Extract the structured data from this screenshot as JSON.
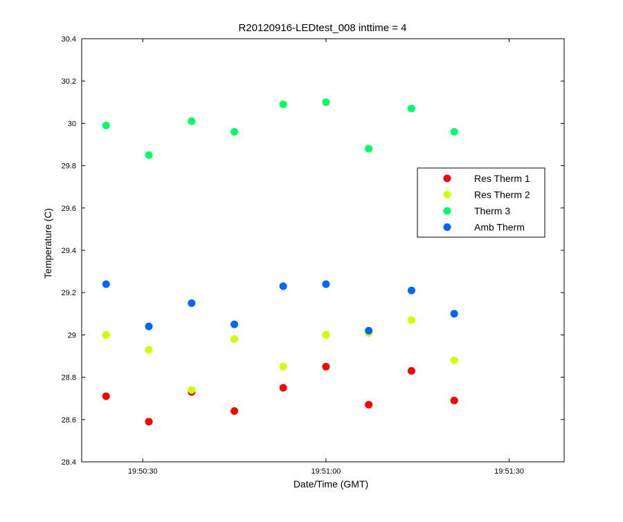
{
  "chart_data": {
    "type": "scatter",
    "title": "R20120916-LEDtest_008 inttime = 4",
    "xlabel": "Date/Time (GMT)",
    "ylabel": "Temperature (C)",
    "xlim": [
      "19:50:20",
      "19:51:39"
    ],
    "ylim": [
      28.4,
      30.4
    ],
    "x_ticks": [
      "19:50:30",
      "19:51:00",
      "19:51:30"
    ],
    "y_ticks": [
      "28.4",
      "28.6",
      "28.8",
      "29",
      "29.2",
      "29.4",
      "29.6",
      "29.8",
      "30",
      "30.2",
      "30.4"
    ],
    "x": [
      "19:50:24",
      "19:50:31",
      "19:50:38",
      "19:50:45",
      "19:50:53",
      "19:51:00",
      "19:51:07",
      "19:51:14",
      "19:51:21"
    ],
    "series": [
      {
        "name": "Res Therm 1",
        "color": "#ff0000",
        "values": [
          28.71,
          28.59,
          28.73,
          28.64,
          28.75,
          28.85,
          28.67,
          28.83,
          28.69
        ]
      },
      {
        "name": "Res Therm 2",
        "color": "#ccff00",
        "values": [
          29.0,
          28.93,
          28.74,
          28.98,
          28.85,
          29.0,
          29.01,
          29.07,
          28.88
        ]
      },
      {
        "name": "Therm 3",
        "color": "#00ff66",
        "values": [
          29.99,
          29.85,
          30.01,
          29.96,
          30.09,
          30.1,
          29.88,
          30.07,
          29.96
        ]
      },
      {
        "name": "Amb Therm",
        "color": "#0066ff",
        "values": [
          29.24,
          29.04,
          29.15,
          29.05,
          29.23,
          29.24,
          29.02,
          29.21,
          29.1
        ]
      }
    ],
    "grid": false,
    "legend_position": "right"
  }
}
